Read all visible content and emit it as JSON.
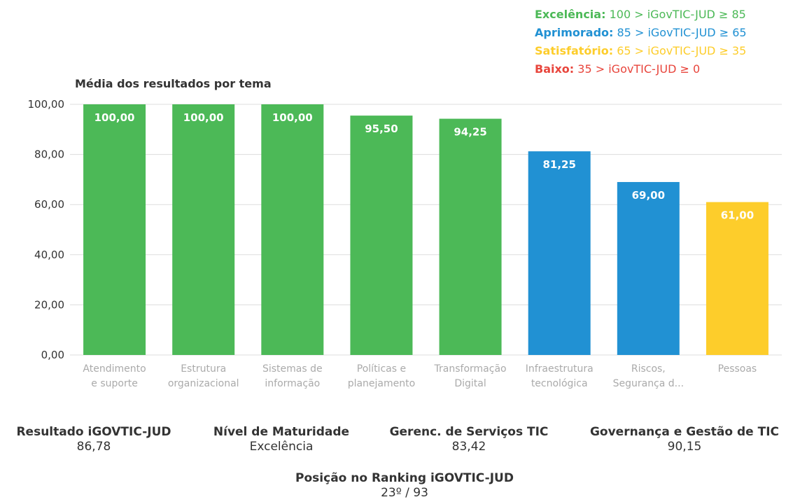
{
  "legend": [
    {
      "label": "Excelência:",
      "range": "100 > iGovTIC-JUD ≥ 85",
      "color": "#4cb957"
    },
    {
      "label": "Aprimorado:",
      "range": "85 > iGovTIC-JUD ≥ 65",
      "color": "#2191d3"
    },
    {
      "label": "Satisfatório:",
      "range": "65 > iGovTIC-JUD ≥ 35",
      "color": "#fdcd2b"
    },
    {
      "label": "Baixo:",
      "range": "35 > iGovTIC-JUD ≥ 0",
      "color": "#e8453c"
    }
  ],
  "chart_data": {
    "type": "bar",
    "title": "Média dos resultados por tema",
    "categories": [
      [
        "Atendimento",
        "e suporte"
      ],
      [
        "Estrutura",
        "organizacional"
      ],
      [
        "Sistemas de",
        "informação"
      ],
      [
        "Políticas e",
        "planejamento"
      ],
      [
        "Transformação",
        "Digital"
      ],
      [
        "Infraestrutura",
        "tecnológica"
      ],
      [
        "Riscos,",
        "Segurança d..."
      ],
      [
        "Pessoas"
      ]
    ],
    "values": [
      100.0,
      100.0,
      100.0,
      95.5,
      94.25,
      81.25,
      69.0,
      61.0
    ],
    "value_labels": [
      "100,00",
      "100,00",
      "100,00",
      "95,50",
      "94,25",
      "81,25",
      "69,00",
      "61,00"
    ],
    "bar_colors": [
      "#4cb957",
      "#4cb957",
      "#4cb957",
      "#4cb957",
      "#4cb957",
      "#2191d3",
      "#2191d3",
      "#fdcd2b"
    ],
    "yticks": [
      "0,00",
      "20,00",
      "40,00",
      "60,00",
      "80,00",
      "100,00"
    ],
    "ylim": [
      0,
      100
    ],
    "grid": true
  },
  "kpis": {
    "resultado": {
      "label": "Resultado iGOVTIC-JUD",
      "value": "86,78"
    },
    "maturidade": {
      "label": "Nível de Maturidade",
      "value": "Excelência"
    },
    "servicos": {
      "label": "Gerenc. de Serviços TIC",
      "value": "83,42"
    },
    "governanca": {
      "label": "Governança e Gestão de TIC",
      "value": "90,15"
    },
    "ranking": {
      "label": "Posição no Ranking iGOVTIC-JUD",
      "value": "23º / 93"
    }
  }
}
